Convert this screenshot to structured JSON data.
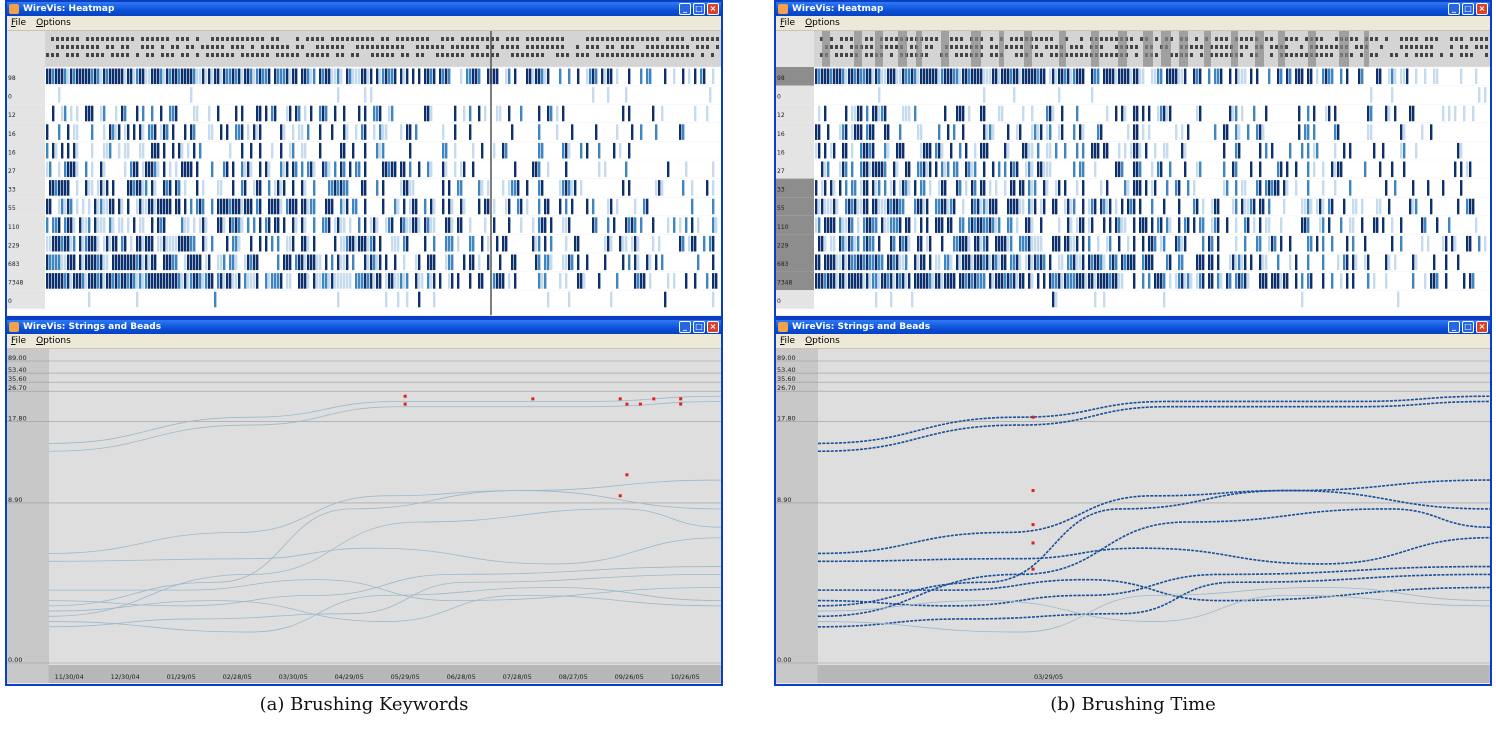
{
  "panels": [
    {
      "caption": "(a) Brushing Keywords",
      "heatmap": {
        "title": "WireVis: Heatmap",
        "menu": [
          "File",
          "Options"
        ],
        "row_labels": [
          "98",
          "0",
          "12",
          "16",
          "16",
          "27",
          "33",
          "55",
          "110",
          "229",
          "683",
          "7348",
          "0"
        ]
      },
      "strings": {
        "title": "WireVis: Strings and Beads",
        "menu": [
          "File",
          "Options"
        ],
        "y_ticks": [
          "89.00",
          "53.40",
          "35.60",
          "26.70",
          "17.80",
          "8.90",
          "0.00"
        ],
        "x_ticks": [
          "11/30/04",
          "12/30/04",
          "01/29/05",
          "02/28/05",
          "03/30/05",
          "04/29/05",
          "05/29/05",
          "06/28/05",
          "07/28/05",
          "08/27/05",
          "09/26/05",
          "10/26/05"
        ]
      }
    },
    {
      "caption": "(b) Brushing Time",
      "heatmap": {
        "title": "WireVis: Heatmap",
        "menu": [
          "File",
          "Options"
        ],
        "row_labels": [
          "98",
          "0",
          "12",
          "16",
          "16",
          "27",
          "33",
          "55",
          "110",
          "229",
          "683",
          "7348",
          "0"
        ]
      },
      "strings": {
        "title": "WireVis: Strings and Beads",
        "menu": [
          "File",
          "Options"
        ],
        "y_ticks": [
          "89.00",
          "53.40",
          "35.60",
          "26.70",
          "17.80",
          "8.90",
          "0.00"
        ],
        "x_ticks": [
          "03/29/05"
        ]
      }
    }
  ],
  "colors": {
    "titlebar": "#0b4fd8",
    "heat_dark": "#0d2f6b",
    "heat_mid": "#3f86c0",
    "heat_light": "#c6dbee",
    "string_line": "#9bb9cc",
    "bead_red": "#e0201a",
    "brush_blue": "#1a4f99"
  }
}
